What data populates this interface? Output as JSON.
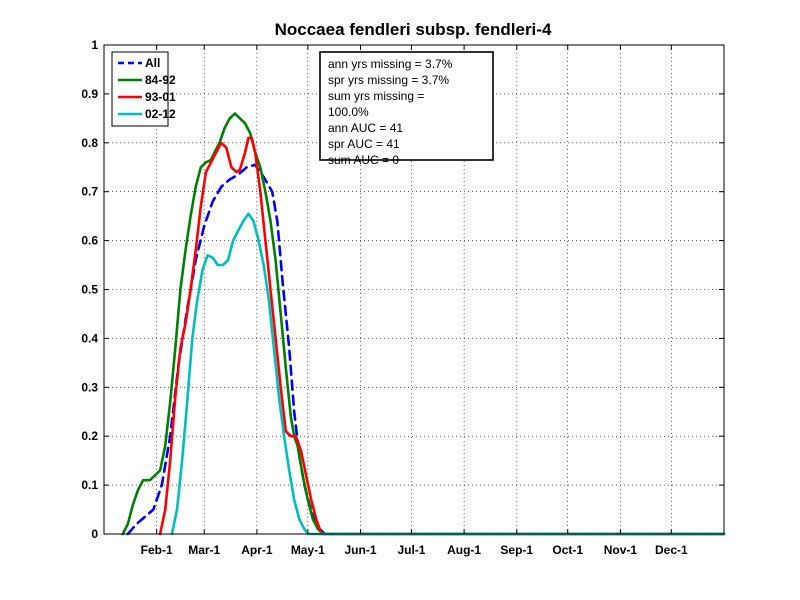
{
  "chart_data": {
    "type": "line",
    "title": "Noccaea fendleri subsp. fendleri-4",
    "xlabel": "",
    "ylabel": "",
    "ylim": [
      0,
      1
    ],
    "xlim_doy": [
      1,
      366
    ],
    "yticks": [
      "0",
      "0.1",
      "0.2",
      "0.3",
      "0.4",
      "0.5",
      "0.6",
      "0.7",
      "0.8",
      "0.9",
      "1"
    ],
    "xticks": [
      {
        "label": "Feb-1",
        "doy": 32
      },
      {
        "label": "Mar-1",
        "doy": 60
      },
      {
        "label": "Apr-1",
        "doy": 91
      },
      {
        "label": "May-1",
        "doy": 121
      },
      {
        "label": "Jun-1",
        "doy": 152
      },
      {
        "label": "Jul-1",
        "doy": 182
      },
      {
        "label": "Aug-1",
        "doy": 213
      },
      {
        "label": "Sep-1",
        "doy": 244
      },
      {
        "label": "Oct-1",
        "doy": 274
      },
      {
        "label": "Nov-1",
        "doy": 305
      },
      {
        "label": "Dec-1",
        "doy": 335
      }
    ],
    "grid": true,
    "legend_position": "top-left",
    "series": [
      {
        "name": "All",
        "color": "#0000ff",
        "style": "dashed",
        "points": [
          [
            15,
            0
          ],
          [
            20,
            0.02
          ],
          [
            25,
            0.035
          ],
          [
            30,
            0.05
          ],
          [
            35,
            0.1
          ],
          [
            40,
            0.2
          ],
          [
            45,
            0.35
          ],
          [
            50,
            0.46
          ],
          [
            55,
            0.56
          ],
          [
            60,
            0.63
          ],
          [
            65,
            0.68
          ],
          [
            70,
            0.71
          ],
          [
            75,
            0.725
          ],
          [
            80,
            0.735
          ],
          [
            85,
            0.75
          ],
          [
            90,
            0.755
          ],
          [
            92,
            0.745
          ],
          [
            95,
            0.73
          ],
          [
            100,
            0.7
          ],
          [
            103,
            0.64
          ],
          [
            106,
            0.52
          ],
          [
            110,
            0.38
          ],
          [
            113,
            0.25
          ],
          [
            116,
            0.16
          ],
          [
            119,
            0.1
          ],
          [
            122,
            0.06
          ],
          [
            125,
            0.03
          ],
          [
            128,
            0.01
          ],
          [
            131,
            0
          ],
          [
            366,
            0
          ]
        ]
      },
      {
        "name": "84-92",
        "color": "#008000",
        "style": "solid",
        "points": [
          [
            12,
            0
          ],
          [
            15,
            0.02
          ],
          [
            18,
            0.06
          ],
          [
            21,
            0.09
          ],
          [
            24,
            0.11
          ],
          [
            28,
            0.11
          ],
          [
            31,
            0.12
          ],
          [
            34,
            0.13
          ],
          [
            37,
            0.18
          ],
          [
            40,
            0.27
          ],
          [
            43,
            0.38
          ],
          [
            46,
            0.5
          ],
          [
            49,
            0.58
          ],
          [
            52,
            0.65
          ],
          [
            55,
            0.71
          ],
          [
            58,
            0.75
          ],
          [
            61,
            0.76
          ],
          [
            64,
            0.765
          ],
          [
            66,
            0.78
          ],
          [
            69,
            0.8
          ],
          [
            72,
            0.83
          ],
          [
            75,
            0.85
          ],
          [
            78,
            0.86
          ],
          [
            81,
            0.85
          ],
          [
            84,
            0.84
          ],
          [
            87,
            0.82
          ],
          [
            90,
            0.78
          ],
          [
            93,
            0.75
          ],
          [
            96,
            0.7
          ],
          [
            99,
            0.64
          ],
          [
            102,
            0.56
          ],
          [
            105,
            0.45
          ],
          [
            108,
            0.34
          ],
          [
            111,
            0.24
          ],
          [
            113,
            0.2
          ],
          [
            115,
            0.18
          ],
          [
            118,
            0.12
          ],
          [
            121,
            0.07
          ],
          [
            124,
            0.03
          ],
          [
            127,
            0.01
          ],
          [
            130,
            0
          ],
          [
            366,
            0
          ]
        ]
      },
      {
        "name": "93-01",
        "color": "#ff0000",
        "style": "solid",
        "points": [
          [
            34,
            0
          ],
          [
            37,
            0.05
          ],
          [
            40,
            0.15
          ],
          [
            43,
            0.28
          ],
          [
            46,
            0.38
          ],
          [
            49,
            0.43
          ],
          [
            52,
            0.5
          ],
          [
            55,
            0.58
          ],
          [
            58,
            0.67
          ],
          [
            61,
            0.74
          ],
          [
            64,
            0.76
          ],
          [
            67,
            0.78
          ],
          [
            70,
            0.8
          ],
          [
            73,
            0.79
          ],
          [
            76,
            0.75
          ],
          [
            79,
            0.74
          ],
          [
            81,
            0.745
          ],
          [
            84,
            0.78
          ],
          [
            86,
            0.81
          ],
          [
            88,
            0.81
          ],
          [
            90,
            0.78
          ],
          [
            93,
            0.7
          ],
          [
            96,
            0.6
          ],
          [
            99,
            0.5
          ],
          [
            102,
            0.4
          ],
          [
            105,
            0.3
          ],
          [
            108,
            0.21
          ],
          [
            111,
            0.2
          ],
          [
            114,
            0.2
          ],
          [
            117,
            0.17
          ],
          [
            120,
            0.12
          ],
          [
            123,
            0.07
          ],
          [
            126,
            0.03
          ],
          [
            129,
            0
          ],
          [
            366,
            0
          ]
        ]
      },
      {
        "name": "02-12",
        "color": "#00bfbf",
        "style": "solid",
        "points": [
          [
            41,
            0
          ],
          [
            44,
            0.05
          ],
          [
            47,
            0.15
          ],
          [
            50,
            0.27
          ],
          [
            53,
            0.4
          ],
          [
            56,
            0.48
          ],
          [
            59,
            0.54
          ],
          [
            62,
            0.57
          ],
          [
            65,
            0.565
          ],
          [
            68,
            0.55
          ],
          [
            71,
            0.55
          ],
          [
            74,
            0.56
          ],
          [
            77,
            0.6
          ],
          [
            80,
            0.62
          ],
          [
            83,
            0.64
          ],
          [
            86,
            0.655
          ],
          [
            89,
            0.64
          ],
          [
            92,
            0.6
          ],
          [
            95,
            0.55
          ],
          [
            98,
            0.48
          ],
          [
            101,
            0.38
          ],
          [
            104,
            0.28
          ],
          [
            107,
            0.2
          ],
          [
            110,
            0.13
          ],
          [
            113,
            0.07
          ],
          [
            116,
            0.03
          ],
          [
            119,
            0.01
          ],
          [
            121,
            0
          ],
          [
            366,
            0
          ]
        ]
      }
    ],
    "annotation": [
      "ann yrs missing = 3.7%",
      "spr yrs missing = 3.7%",
      "sum yrs missing =",
      "100.0%",
      "ann AUC = 41",
      "spr AUC = 41",
      "sum AUC = 0"
    ]
  }
}
